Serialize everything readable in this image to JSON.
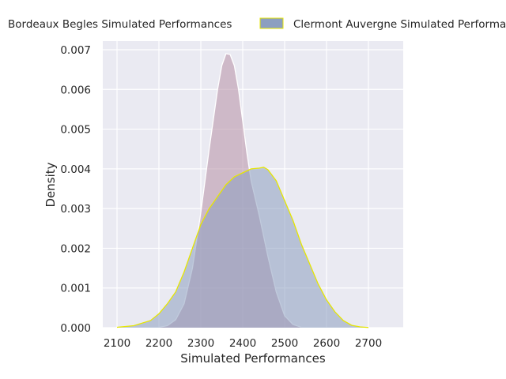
{
  "chart_data": {
    "type": "area",
    "title": "",
    "xlabel": "Simulated Performances",
    "ylabel": "Density",
    "xlim": [
      2040,
      2760
    ],
    "ylim": [
      0,
      0.0072
    ],
    "xticks": [
      2100,
      2200,
      2300,
      2400,
      2500,
      2600,
      2700
    ],
    "yticks": [
      0.0,
      0.001,
      0.002,
      0.003,
      0.004,
      0.005,
      0.006,
      0.007
    ],
    "ytick_labels": [
      "0.000",
      "0.001",
      "0.002",
      "0.003",
      "0.004",
      "0.005",
      "0.006",
      "0.007"
    ],
    "grid": true,
    "legend_position": "top",
    "series": [
      {
        "name": "Bordeaux Begles Simulated Performances",
        "fill": "#b78fa6",
        "edge": "#ffffff",
        "x": [
          2200,
          2220,
          2240,
          2260,
          2280,
          2300,
          2320,
          2340,
          2350,
          2360,
          2370,
          2380,
          2390,
          2400,
          2410,
          2420,
          2440,
          2460,
          2480,
          2500,
          2520,
          2540
        ],
        "y": [
          1e-05,
          5e-05,
          0.0002,
          0.0006,
          0.0015,
          0.0029,
          0.0045,
          0.006,
          0.0066,
          0.0069,
          0.00688,
          0.0066,
          0.006,
          0.0052,
          0.0044,
          0.0037,
          0.0028,
          0.0018,
          0.0009,
          0.0003,
          8e-05,
          1e-05
        ]
      },
      {
        "name": "Clermont Auvergne Simulated Performances",
        "fill": "#8c9fc0",
        "edge": "#e6e600",
        "x": [
          2100,
          2140,
          2180,
          2200,
          2220,
          2240,
          2260,
          2280,
          2300,
          2320,
          2340,
          2360,
          2380,
          2400,
          2420,
          2440,
          2450,
          2460,
          2480,
          2500,
          2520,
          2540,
          2560,
          2580,
          2600,
          2620,
          2640,
          2660,
          2680,
          2700
        ],
        "y": [
          1e-05,
          5e-05,
          0.00018,
          0.00035,
          0.0006,
          0.0009,
          0.0014,
          0.002,
          0.0026,
          0.003,
          0.0033,
          0.0036,
          0.0038,
          0.0039,
          0.004,
          0.00402,
          0.00404,
          0.00398,
          0.0037,
          0.0032,
          0.0027,
          0.0021,
          0.0016,
          0.0011,
          0.0007,
          0.0004,
          0.00018,
          6e-05,
          2e-05,
          5e-06
        ]
      }
    ]
  }
}
